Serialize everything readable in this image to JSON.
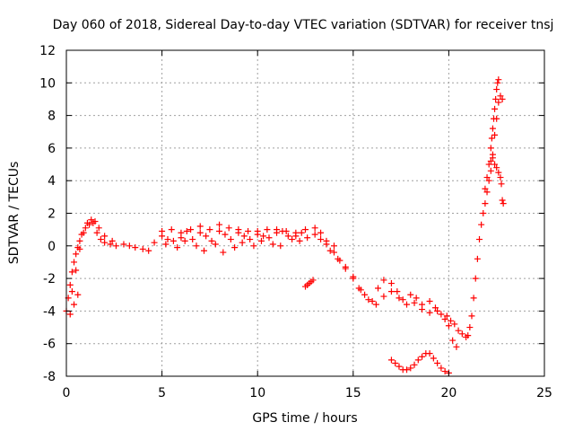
{
  "chart_data": {
    "type": "scatter",
    "title": "Day 060 of 2018, Sidereal Day-to-day VTEC variation (SDTVAR) for receiver tnsj",
    "xlabel": "GPS time / hours",
    "ylabel": "SDTVAR / TECUs",
    "xlim": [
      0,
      25
    ],
    "ylim": [
      -8,
      12
    ],
    "xticks": [
      0,
      5,
      10,
      15,
      20,
      25
    ],
    "yticks": [
      -8,
      -6,
      -4,
      -2,
      0,
      2,
      4,
      6,
      8,
      10,
      12
    ],
    "xtick_labels": [
      "0",
      "5",
      "10",
      "15",
      "20",
      "25"
    ],
    "ytick_labels": [
      "-8",
      "-6",
      "-4",
      "-2",
      "0",
      "2",
      "4",
      "6",
      "8",
      "10",
      "12"
    ],
    "grid": true,
    "marker": "+",
    "color": "#ff0000",
    "series": [
      {
        "name": "main",
        "x": [
          0.0,
          0.1,
          0.2,
          0.3,
          0.4,
          0.5,
          0.6,
          0.7,
          0.8,
          1.0,
          1.2,
          1.4,
          1.6,
          1.8,
          2.0,
          2.3,
          2.6,
          3.0,
          3.3,
          3.6,
          4.0,
          4.3,
          4.6,
          5.0,
          5.3,
          5.6,
          6.0,
          6.3,
          6.6,
          7.0,
          7.3,
          7.6,
          8.0,
          8.3,
          8.6,
          9.0,
          9.3,
          9.6,
          10.0,
          10.3,
          10.6,
          11.0,
          11.3,
          11.6,
          12.0,
          12.3,
          12.6,
          13.0,
          13.3,
          13.6,
          14.0,
          14.3,
          14.6,
          15.0,
          15.3,
          15.6,
          16.0,
          16.3,
          16.6,
          17.0,
          17.3,
          17.6,
          18.0,
          18.3,
          18.6,
          19.0,
          19.3,
          19.6,
          19.9,
          20.1,
          20.3,
          20.5,
          20.7,
          20.9,
          21.0,
          21.1,
          21.2,
          21.3,
          21.4,
          21.5,
          21.6,
          21.7,
          21.8,
          21.9,
          22.0,
          22.1,
          22.2,
          22.3,
          22.4,
          22.5,
          22.6,
          22.7,
          22.8
        ],
        "y": [
          -4.0,
          -3.2,
          -2.4,
          -1.6,
          -1.0,
          -0.5,
          -0.1,
          0.3,
          0.7,
          1.1,
          1.3,
          1.4,
          0.8,
          0.4,
          0.2,
          0.1,
          0.0,
          0.1,
          0.0,
          -0.1,
          -0.2,
          -0.3,
          0.2,
          0.6,
          0.4,
          0.3,
          0.5,
          0.9,
          0.4,
          0.8,
          0.6,
          0.3,
          0.9,
          0.7,
          0.4,
          0.8,
          0.6,
          0.4,
          0.7,
          0.6,
          0.5,
          0.8,
          0.9,
          0.6,
          0.6,
          0.8,
          0.5,
          0.7,
          0.4,
          0.1,
          -0.4,
          -0.9,
          -1.4,
          -2.0,
          -2.6,
          -3.0,
          -3.4,
          -2.6,
          -2.1,
          -2.3,
          -2.8,
          -3.3,
          -3.0,
          -3.2,
          -3.6,
          -3.4,
          -3.8,
          -4.2,
          -4.3,
          -4.6,
          -4.8,
          -5.2,
          -5.4,
          -5.6,
          -5.5,
          -5.0,
          -4.3,
          -3.2,
          -2.0,
          -0.8,
          0.4,
          1.3,
          2.0,
          2.6,
          3.3,
          4.0,
          4.6,
          5.6,
          6.8,
          7.8,
          8.8,
          9.2,
          9.0
        ]
      },
      {
        "name": "upper-branch",
        "x": [
          0.3,
          0.5,
          0.7,
          0.9,
          1.1,
          1.3,
          1.5,
          1.7,
          2.0,
          2.4,
          5.0,
          5.5,
          6.0,
          6.5,
          7.0,
          7.5,
          8.0,
          8.5,
          9.0,
          9.5,
          10.0,
          10.5,
          11.0,
          11.5,
          12.0,
          12.5,
          13.0,
          13.3,
          13.6,
          14.0
        ],
        "y": [
          -2.8,
          -1.5,
          -0.2,
          0.8,
          1.4,
          1.6,
          1.5,
          1.1,
          0.6,
          0.3,
          0.9,
          1.0,
          0.8,
          1.0,
          1.2,
          1.0,
          1.3,
          1.1,
          1.0,
          0.9,
          0.9,
          1.0,
          1.0,
          0.9,
          0.8,
          1.0,
          1.1,
          0.8,
          0.3,
          0.0
        ]
      },
      {
        "name": "lower-branch",
        "x": [
          0.2,
          0.4,
          0.6,
          5.2,
          5.8,
          6.2,
          6.8,
          7.2,
          7.8,
          8.2,
          8.8,
          9.2,
          9.8,
          10.2,
          10.8,
          11.2,
          11.8,
          12.2,
          13.8,
          14.2,
          14.6,
          15.0,
          15.4,
          15.8,
          16.2,
          16.6,
          17.0,
          17.4,
          17.8,
          18.2,
          18.6,
          19.0,
          19.4,
          19.8,
          20.0,
          20.2,
          20.4
        ],
        "y": [
          -4.2,
          -3.6,
          -3.0,
          0.1,
          -0.1,
          0.3,
          0.0,
          -0.3,
          0.1,
          -0.4,
          -0.1,
          0.2,
          0.0,
          0.3,
          0.1,
          0.0,
          0.4,
          0.3,
          -0.3,
          -0.8,
          -1.3,
          -1.9,
          -2.7,
          -3.3,
          -3.6,
          -3.1,
          -2.8,
          -3.2,
          -3.6,
          -3.5,
          -3.9,
          -4.1,
          -4.0,
          -4.5,
          -4.9,
          -5.8,
          -6.2
        ]
      },
      {
        "name": "spike-upper",
        "x": [
          21.9,
          22.0,
          22.1,
          22.2,
          22.25,
          22.3,
          22.35,
          22.4,
          22.45,
          22.5,
          22.55,
          22.6
        ],
        "y": [
          3.5,
          4.2,
          5.0,
          6.0,
          6.6,
          7.2,
          7.8,
          8.4,
          9.0,
          9.6,
          10.0,
          10.2
        ]
      },
      {
        "name": "spike-lower",
        "x": [
          22.2,
          22.3,
          22.4,
          22.5,
          22.6,
          22.7,
          22.75,
          22.8,
          22.85
        ],
        "y": [
          5.2,
          5.4,
          5.0,
          4.8,
          4.5,
          4.2,
          3.8,
          2.8,
          2.6
        ]
      },
      {
        "name": "isolated-12h",
        "x": [
          12.5,
          12.6,
          12.7,
          12.8,
          12.9
        ],
        "y": [
          -2.5,
          -2.4,
          -2.3,
          -2.2,
          -2.1
        ]
      },
      {
        "name": "late-dip",
        "x": [
          17.0,
          17.2,
          17.4,
          17.6,
          17.8,
          18.0,
          18.2,
          18.4,
          18.6,
          18.8,
          19.0,
          19.2,
          19.4,
          19.6,
          19.8,
          20.0
        ],
        "y": [
          -7.0,
          -7.2,
          -7.4,
          -7.6,
          -7.6,
          -7.5,
          -7.3,
          -7.0,
          -6.8,
          -6.6,
          -6.6,
          -6.9,
          -7.2,
          -7.5,
          -7.7,
          -7.8
        ]
      }
    ]
  }
}
